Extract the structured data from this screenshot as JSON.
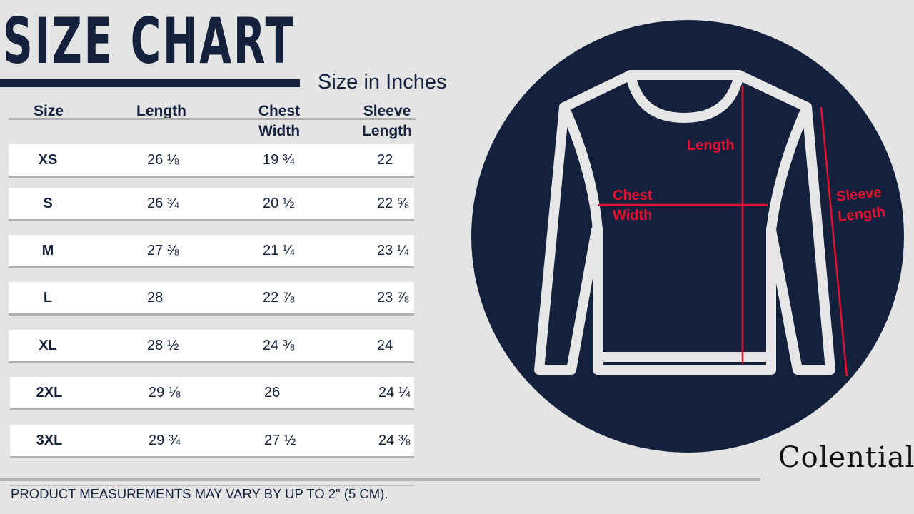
{
  "title": "SIZE CHART",
  "subtitle": "Size in Inches",
  "table": {
    "headers": [
      "Size",
      "Length",
      "Chest Width",
      "Sleeve Length"
    ],
    "header_lines": [
      [
        "Size"
      ],
      [
        "Length"
      ],
      [
        "Chest",
        "Width"
      ],
      [
        "Sleeve",
        "Length"
      ]
    ],
    "rows": [
      {
        "size": "XS",
        "length": "26 ⅛",
        "chest": "19 ¾",
        "sleeve": "22"
      },
      {
        "size": "S",
        "length": "26 ¾",
        "chest": "20 ½",
        "sleeve": "22 ⅝"
      },
      {
        "size": "M",
        "length": "27 ⅜",
        "chest": "21 ¼",
        "sleeve": "23 ¼"
      },
      {
        "size": "L",
        "length": "28",
        "chest": "22 ⅞",
        "sleeve": "23 ⅞"
      },
      {
        "size": "XL",
        "length": "28 ½",
        "chest": "24 ⅜",
        "sleeve": "24"
      },
      {
        "size": "2XL",
        "length": "29 ⅛",
        "chest": "26",
        "sleeve": "24 ¼"
      },
      {
        "size": "3XL",
        "length": "29 ¾",
        "chest": "27 ½",
        "sleeve": "24 ⅜"
      }
    ]
  },
  "diagram": {
    "labels": {
      "length": "Length",
      "chest_1": "Chest",
      "chest_2": "Width",
      "sleeve_1": "Sleeve",
      "sleeve_2": "Length"
    },
    "colors": {
      "circle": "#14213d",
      "garment": "#e6e6e6",
      "measure": "#e8102e"
    }
  },
  "footer": "PRODUCT MEASUREMENTS MAY VARY BY UP TO 2\" (5 CM).",
  "brand": "Colential"
}
